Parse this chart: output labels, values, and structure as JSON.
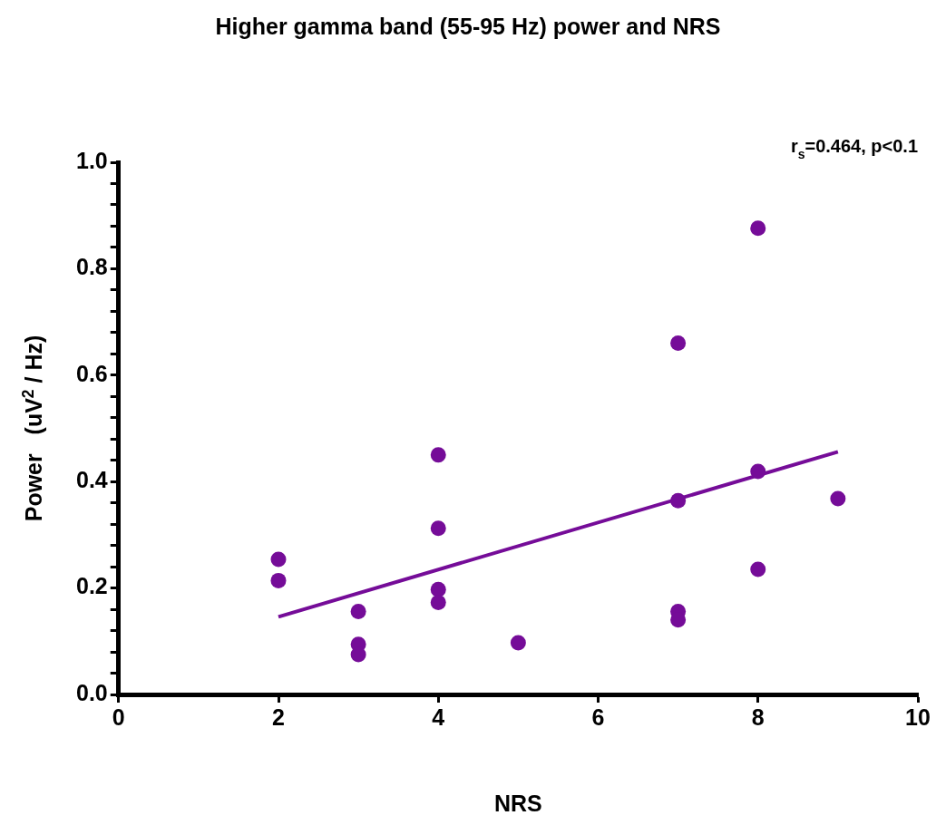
{
  "chart_data": {
    "type": "scatter",
    "title": "Higher gamma band (55-95 Hz) power and NRS",
    "xlabel": "NRS",
    "ylabel": "Power   (uV$^{2}$ / Hz)",
    "annotations": [
      "r$_{s}$=0.464, p<0.1"
    ],
    "marker": "circle",
    "grid": false,
    "xlim": [
      0,
      10
    ],
    "xticks": [
      0,
      2,
      4,
      6,
      8,
      10
    ],
    "ylim": [
      0,
      1
    ],
    "yticks": [
      {
        "value": 0,
        "label": "0.0"
      },
      {
        "value": 0.04,
        "label": null
      },
      {
        "value": 0.08,
        "label": null
      },
      {
        "value": 0.12,
        "label": null
      },
      {
        "value": 0.16,
        "label": null
      },
      {
        "value": 0.2,
        "label": "0.2"
      },
      {
        "value": 0.24,
        "label": null
      },
      {
        "value": 0.28,
        "label": null
      },
      {
        "value": 0.32,
        "label": null
      },
      {
        "value": 0.36,
        "label": null
      },
      {
        "value": 0.4,
        "label": "0.4"
      },
      {
        "value": 0.44,
        "label": null
      },
      {
        "value": 0.48,
        "label": null
      },
      {
        "value": 0.52,
        "label": null
      },
      {
        "value": 0.56,
        "label": null
      },
      {
        "value": 0.6,
        "label": "0.6"
      },
      {
        "value": 0.64,
        "label": null
      },
      {
        "value": 0.68,
        "label": null
      },
      {
        "value": 0.72,
        "label": null
      },
      {
        "value": 0.76,
        "label": null
      },
      {
        "value": 0.8,
        "label": "0.8"
      },
      {
        "value": 0.84,
        "label": null
      },
      {
        "value": 0.88,
        "label": null
      },
      {
        "value": 0.92,
        "label": null
      },
      {
        "value": 0.96,
        "label": null
      },
      {
        "value": 1,
        "label": "1.0"
      }
    ],
    "series": [
      {
        "type": "scatter",
        "color": "#750c98",
        "x": [
          2,
          2,
          3,
          3,
          3,
          4,
          4,
          4,
          4,
          5,
          7,
          7,
          7,
          7,
          8,
          8,
          8,
          9
        ],
        "values": [
          0.254,
          0.214,
          0.156,
          0.094,
          0.075,
          0.45,
          0.312,
          0.197,
          0.173,
          0.097,
          0.66,
          0.364,
          0.156,
          0.14,
          0.876,
          0.419,
          0.235,
          0.368
        ]
      },
      {
        "type": "line",
        "marker": "none",
        "color": "#750c98",
        "x": [
          2,
          9
        ],
        "values": [
          0.146,
          0.456
        ]
      }
    ]
  }
}
